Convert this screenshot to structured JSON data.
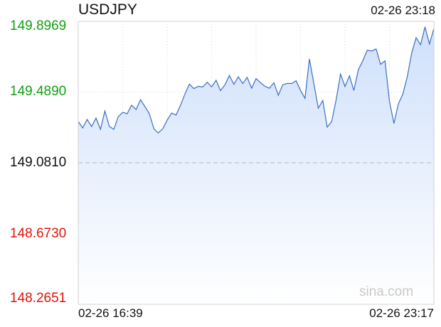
{
  "header": {
    "symbol": "USDJPY",
    "datetime": "02-26 23:18"
  },
  "watermark": "sina.com",
  "colors": {
    "up": "#11a011",
    "down": "#e0140a",
    "neutral": "#111111",
    "line": "#3b6fc4",
    "fill_top": "#cfe0fb",
    "fill_bottom": "#ffffff",
    "grid": "#d8d8d8",
    "baseline": "#b5b5b5"
  },
  "chart_data": {
    "type": "area",
    "title": "USDJPY",
    "xlabel": "",
    "ylabel": "",
    "x_tick_labels": [
      "02-26 16:39",
      "02-26 23:17"
    ],
    "y_ticks": [
      {
        "label": "149.8969",
        "value": 149.8969,
        "tone": "up"
      },
      {
        "label": "149.4890",
        "value": 149.489,
        "tone": "up"
      },
      {
        "label": "149.0810",
        "value": 149.081,
        "tone": "neutral"
      },
      {
        "label": "148.6730",
        "value": 148.673,
        "tone": "down"
      },
      {
        "label": "148.2651",
        "value": 148.2651,
        "tone": "down"
      }
    ],
    "ylim": [
      148.2651,
      149.8969
    ],
    "reference_value": 149.081,
    "grid": true,
    "series": [
      {
        "x": [
          "16:39",
          "16:44",
          "16:49",
          "16:54",
          "16:59",
          "17:04",
          "17:09",
          "17:14",
          "17:19",
          "17:24",
          "17:29",
          "17:34",
          "17:39",
          "17:44",
          "17:49",
          "17:54",
          "17:59",
          "18:04",
          "18:09",
          "18:14",
          "18:19",
          "18:24",
          "18:29",
          "18:34",
          "18:39",
          "18:44",
          "18:49",
          "18:54",
          "18:59",
          "19:04",
          "19:09",
          "19:14",
          "19:19",
          "19:24",
          "19:29",
          "19:34",
          "19:39",
          "19:44",
          "19:49",
          "19:54",
          "19:59",
          "20:04",
          "20:09",
          "20:14",
          "20:19",
          "20:24",
          "20:29",
          "20:34",
          "20:39",
          "20:44",
          "20:49",
          "20:54",
          "20:59",
          "21:04",
          "21:09",
          "21:14",
          "21:19",
          "21:24",
          "21:29",
          "21:34",
          "21:39",
          "21:44",
          "21:49",
          "21:54",
          "21:59",
          "22:04",
          "22:09",
          "22:14",
          "22:19",
          "22:24",
          "22:29",
          "22:34",
          "22:39",
          "22:44",
          "22:49",
          "22:54",
          "22:59",
          "23:04",
          "23:09",
          "23:14",
          "23:17"
        ],
        "values": [
          149.319,
          149.282,
          149.331,
          149.29,
          149.339,
          149.274,
          149.38,
          149.29,
          149.274,
          149.347,
          149.372,
          149.364,
          149.413,
          149.388,
          149.445,
          149.405,
          149.364,
          149.278,
          149.253,
          149.278,
          149.327,
          149.368,
          149.356,
          149.413,
          149.478,
          149.535,
          149.509,
          149.522,
          149.518,
          149.546,
          149.519,
          149.557,
          149.497,
          149.531,
          149.585,
          149.534,
          149.577,
          149.538,
          149.574,
          149.511,
          149.567,
          149.543,
          149.522,
          149.511,
          149.543,
          149.47,
          149.531,
          149.539,
          149.538,
          149.554,
          149.498,
          149.453,
          149.68,
          149.537,
          149.396,
          149.441,
          149.287,
          149.319,
          149.443,
          149.593,
          149.521,
          149.583,
          149.498,
          149.618,
          149.669,
          149.73,
          149.726,
          149.738,
          149.649,
          149.669,
          149.437,
          149.308,
          149.42,
          149.477,
          149.576,
          149.714,
          149.803,
          149.762,
          149.865,
          149.766,
          149.856
        ]
      }
    ]
  }
}
